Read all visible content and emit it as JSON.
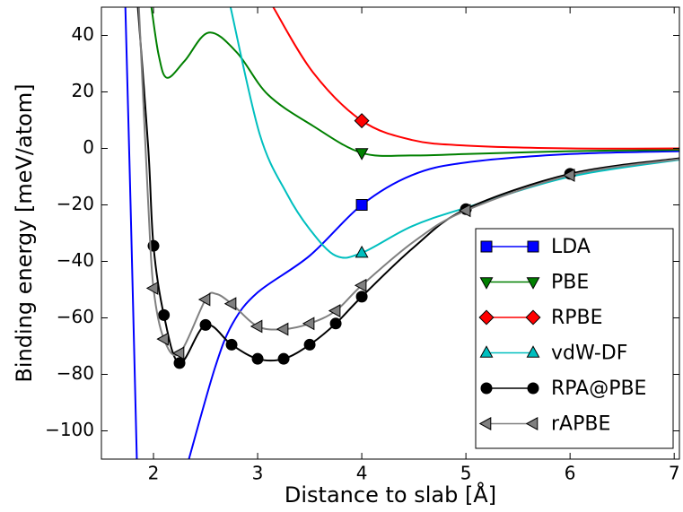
{
  "chart_data": {
    "type": "line",
    "x_label": "Distance to slab [Å]",
    "y_label": "Binding energy [meV/atom]",
    "xlim": [
      1.5,
      7.05
    ],
    "ylim": [
      -110,
      50
    ],
    "xticks": [
      2,
      3,
      4,
      5,
      6,
      7
    ],
    "yticks": [
      40,
      20,
      0,
      {
        "value": -20,
        "label": "−20"
      },
      {
        "value": -40,
        "label": "−40"
      },
      {
        "value": -60,
        "label": "−60"
      },
      {
        "value": -80,
        "label": "−80"
      },
      {
        "value": -100,
        "label": "−100"
      }
    ],
    "legend": "lower right",
    "series": [
      {
        "name": "LDA",
        "color": "#0000ff",
        "marker": "square",
        "x": [
          4
        ],
        "values": [
          -20
        ],
        "curve": {
          "x": [
            1.73,
            1.78,
            1.84,
            2.1,
            2.34,
            2.59,
            2.76,
            3.0,
            3.5,
            4.0,
            4.48,
            5.0,
            6.0,
            7.05
          ],
          "values": [
            50,
            -20,
            -110,
            null,
            -110,
            -77.7,
            -62,
            -51,
            -38,
            -20,
            -9.5,
            -5,
            -2,
            -1
          ]
        }
      },
      {
        "name": "PBE",
        "color": "#008000",
        "marker": "triangle-down",
        "x": [
          4
        ],
        "values": [
          -1.6
        ],
        "curve": {
          "x": [
            1.98,
            2.05,
            2.13,
            2.3,
            2.53,
            2.8,
            3.1,
            3.53,
            4.0,
            4.48,
            5.0,
            6.0,
            7.05
          ],
          "values": [
            50,
            33,
            25,
            31,
            41,
            34,
            19,
            8,
            -1.6,
            -2.5,
            -2,
            -1,
            -0.5
          ]
        }
      },
      {
        "name": "RPBE",
        "color": "#ff0000",
        "marker": "diamond",
        "x": [
          4
        ],
        "values": [
          9.8
        ],
        "curve": {
          "x": [
            3.15,
            3.53,
            4.0,
            4.48,
            5.0,
            6.0,
            7.05
          ],
          "values": [
            50,
            27,
            9.8,
            3,
            1,
            0,
            0
          ]
        }
      },
      {
        "name": "vdW-DF",
        "color": "#00bfbf",
        "marker": "triangle-up",
        "x": [
          4
        ],
        "values": [
          -37
        ],
        "curve": {
          "x": [
            2.74,
            3.02,
            3.28,
            3.5,
            3.75,
            4.0,
            4.48,
            5.0,
            6.0,
            7.05
          ],
          "values": [
            50,
            5,
            -16,
            -28.6,
            -38,
            -37,
            -27.6,
            -21,
            -10,
            -4
          ]
        }
      },
      {
        "name": "RPA@PBE",
        "color": "#000000",
        "marker": "circle",
        "x": [
          2.0,
          2.1,
          2.25,
          2.5,
          2.75,
          3.0,
          3.25,
          3.5,
          3.75,
          4.0,
          5.0,
          6.0
        ],
        "values": [
          -34.5,
          -59,
          -76,
          -62.5,
          -69.5,
          -74.5,
          -74.5,
          -69.5,
          -62,
          -52.5,
          -21.5,
          -9
        ],
        "curve": {
          "x": [
            1.85,
            1.95,
            2.0,
            2.1,
            2.25,
            2.5,
            2.75,
            3.0,
            3.25,
            3.5,
            3.75,
            4.0,
            4.5,
            5.0,
            6.0,
            7.05
          ],
          "values": [
            50,
            0,
            -34.5,
            -59,
            -76,
            -62.5,
            -69.5,
            -74.5,
            -74.5,
            -69.5,
            -62,
            -52.5,
            -35,
            -21.5,
            -9,
            -3.5
          ]
        }
      },
      {
        "name": "rAPBE",
        "color": "#808080",
        "marker": "triangle-left",
        "x": [
          2.0,
          2.1,
          2.25,
          2.5,
          2.75,
          3.0,
          3.25,
          3.5,
          3.75,
          4.0,
          5.0,
          6.0
        ],
        "values": [
          -49.5,
          -67.5,
          -72.5,
          -53.5,
          -55,
          -63,
          -64,
          -62,
          -57.5,
          -48.5,
          -22,
          -9.5
        ],
        "curve": {
          "x": [
            1.86,
            1.95,
            2.0,
            2.1,
            2.25,
            2.5,
            2.6,
            2.75,
            3.0,
            3.25,
            3.5,
            3.75,
            4.0,
            4.5,
            5.0,
            6.0,
            7.05
          ],
          "values": [
            50,
            -20,
            -49.5,
            -67.5,
            -72.5,
            -53.5,
            -51.5,
            -55,
            -63,
            -64,
            -62,
            -57.5,
            -48.5,
            -33,
            -22,
            -9.5,
            -3.8
          ]
        }
      }
    ]
  }
}
